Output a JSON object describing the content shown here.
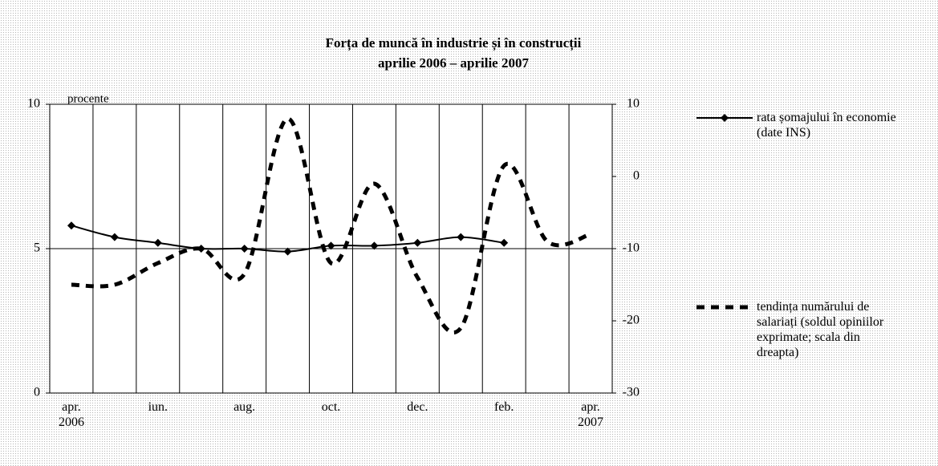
{
  "chart_data": {
    "type": "line",
    "title": "Forța de muncă în industrie și în construcții",
    "subtitle": "aprilie 2006 – aprilie 2007",
    "y_axis_label": "procente",
    "categories": [
      "apr.\n2006",
      null,
      "iun.",
      null,
      "aug.",
      null,
      "oct.",
      null,
      "dec.",
      null,
      "feb.",
      null,
      "apr.\n2007"
    ],
    "ylim": [
      0,
      10
    ],
    "yticks": [
      0,
      5,
      10
    ],
    "y2lim": [
      -30,
      10
    ],
    "y2ticks": [
      -30,
      -20,
      -10,
      0,
      10
    ],
    "grid": true,
    "legend": "right",
    "series": [
      {
        "name": "rata șomajului în economie (date INS)",
        "color": "#000000",
        "line_style": "solid",
        "marker": "diamond",
        "values": [
          5.8,
          5.4,
          5.2,
          5.0,
          5.0,
          4.9,
          5.1,
          5.1,
          5.2,
          5.4,
          5.2,
          null,
          null
        ]
      },
      {
        "name": "tendința numărului de salariați (soldul opiniilor exprimate; scala din dreapta)",
        "color": "#000000",
        "line_style": "dashed",
        "marker": "none",
        "axis": "y2",
        "values": [
          -15,
          -15,
          -12,
          -10,
          -13.5,
          8,
          -12,
          -1,
          -14,
          -21,
          1.5,
          -9,
          -8
        ]
      }
    ]
  }
}
